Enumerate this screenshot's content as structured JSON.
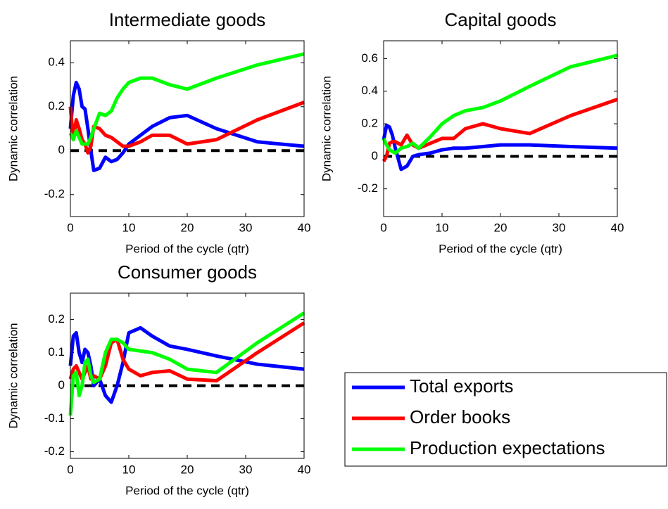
{
  "chart_data": [
    {
      "type": "line",
      "title": "Intermediate goods",
      "xlabel": "Period of the cycle (qtr)",
      "ylabel": "Dynamic correlation",
      "x": [
        0,
        0.5,
        1,
        1.5,
        2,
        2.5,
        3,
        3.5,
        4,
        5,
        6,
        7,
        8,
        9,
        10,
        12,
        14,
        17,
        20,
        25,
        32,
        40
      ],
      "series": [
        {
          "name": "Total exports",
          "color": "#0000ff",
          "values": [
            0.1,
            0.25,
            0.31,
            0.28,
            0.2,
            0.19,
            0.1,
            0.0,
            -0.09,
            -0.08,
            -0.03,
            -0.05,
            -0.04,
            -0.01,
            0.03,
            0.07,
            0.11,
            0.15,
            0.16,
            0.1,
            0.04,
            0.02
          ]
        },
        {
          "name": "Order books",
          "color": "#ff0000",
          "values": [
            0.2,
            0.05,
            0.14,
            0.1,
            0.05,
            0.03,
            -0.01,
            0.02,
            0.11,
            0.1,
            0.07,
            0.06,
            0.04,
            0.02,
            0.02,
            0.04,
            0.07,
            0.07,
            0.03,
            0.05,
            0.14,
            0.22
          ]
        },
        {
          "name": "Production expectations",
          "color": "#00ff00",
          "values": [
            0.08,
            0.05,
            0.09,
            0.06,
            0.03,
            0.03,
            0.03,
            0.06,
            0.1,
            0.17,
            0.16,
            0.18,
            0.24,
            0.28,
            0.31,
            0.33,
            0.33,
            0.3,
            0.28,
            0.33,
            0.39,
            0.44
          ]
        }
      ],
      "xlim": [
        0,
        40
      ],
      "xticks": [
        0,
        10,
        20,
        30,
        40
      ],
      "ylim": [
        -0.3,
        0.5
      ],
      "yticks": [
        -0.2,
        0,
        0.2,
        0.4
      ],
      "zero_line": true
    },
    {
      "type": "line",
      "title": "Capital goods",
      "xlabel": "Period of the cycle (qtr)",
      "ylabel": "Dynamic correlation",
      "x": [
        0,
        0.5,
        1,
        1.5,
        2,
        3,
        4,
        5,
        6,
        8,
        10,
        12,
        14,
        17,
        20,
        25,
        32,
        40
      ],
      "series": [
        {
          "name": "Total exports",
          "color": "#0000ff",
          "values": [
            0.1,
            0.19,
            0.18,
            0.13,
            0.05,
            -0.08,
            -0.06,
            0.0,
            0.01,
            0.02,
            0.04,
            0.05,
            0.05,
            0.06,
            0.07,
            0.07,
            0.06,
            0.05
          ]
        },
        {
          "name": "Order books",
          "color": "#ff0000",
          "values": [
            -0.03,
            0.0,
            0.08,
            0.09,
            0.09,
            0.07,
            0.13,
            0.07,
            0.05,
            0.08,
            0.11,
            0.11,
            0.17,
            0.2,
            0.17,
            0.14,
            0.25,
            0.35
          ]
        },
        {
          "name": "Production expectations",
          "color": "#00ff00",
          "values": [
            0.11,
            0.07,
            0.04,
            0.03,
            0.02,
            0.05,
            0.06,
            0.08,
            0.05,
            0.12,
            0.2,
            0.25,
            0.28,
            0.3,
            0.34,
            0.43,
            0.55,
            0.62
          ]
        }
      ],
      "xlim": [
        0,
        40
      ],
      "xticks": [
        0,
        10,
        20,
        30,
        40
      ],
      "ylim": [
        -0.37,
        0.71
      ],
      "yticks": [
        -0.2,
        0,
        0.2,
        0.4,
        0.6
      ],
      "zero_line": true
    },
    {
      "type": "line",
      "title": "Consumer goods",
      "xlabel": "Period of the cycle (qtr)",
      "ylabel": "Dynamic correlation",
      "x": [
        0,
        0.5,
        1,
        1.5,
        2,
        2.5,
        3,
        3.5,
        4,
        5,
        6,
        7,
        8,
        9,
        10,
        12,
        14,
        17,
        20,
        25,
        32,
        40
      ],
      "series": [
        {
          "name": "Total exports",
          "color": "#0000ff",
          "values": [
            0.06,
            0.15,
            0.16,
            0.1,
            0.07,
            0.11,
            0.1,
            0.06,
            0.0,
            0.02,
            -0.03,
            -0.05,
            0.0,
            0.07,
            0.16,
            0.175,
            0.15,
            0.12,
            0.11,
            0.09,
            0.065,
            0.05
          ]
        },
        {
          "name": "Order books",
          "color": "#ff0000",
          "values": [
            0.02,
            0.05,
            0.06,
            0.04,
            0.02,
            0.04,
            0.06,
            0.02,
            0.03,
            0.02,
            0.06,
            0.13,
            0.14,
            0.08,
            0.05,
            0.03,
            0.04,
            0.045,
            0.02,
            0.015,
            0.1,
            0.19
          ]
        },
        {
          "name": "Production expectations",
          "color": "#00ff00",
          "values": [
            -0.09,
            0.03,
            0.04,
            -0.03,
            0.0,
            0.07,
            0.08,
            0.03,
            0.01,
            0.02,
            0.1,
            0.14,
            0.14,
            0.13,
            0.11,
            0.105,
            0.1,
            0.08,
            0.05,
            0.04,
            0.13,
            0.22
          ]
        }
      ],
      "xlim": [
        0,
        40
      ],
      "xticks": [
        0,
        10,
        20,
        30,
        40
      ],
      "ylim": [
        -0.22,
        0.28
      ],
      "yticks": [
        -0.2,
        -0.1,
        0,
        0.1,
        0.2
      ],
      "zero_line": true
    }
  ]
}
